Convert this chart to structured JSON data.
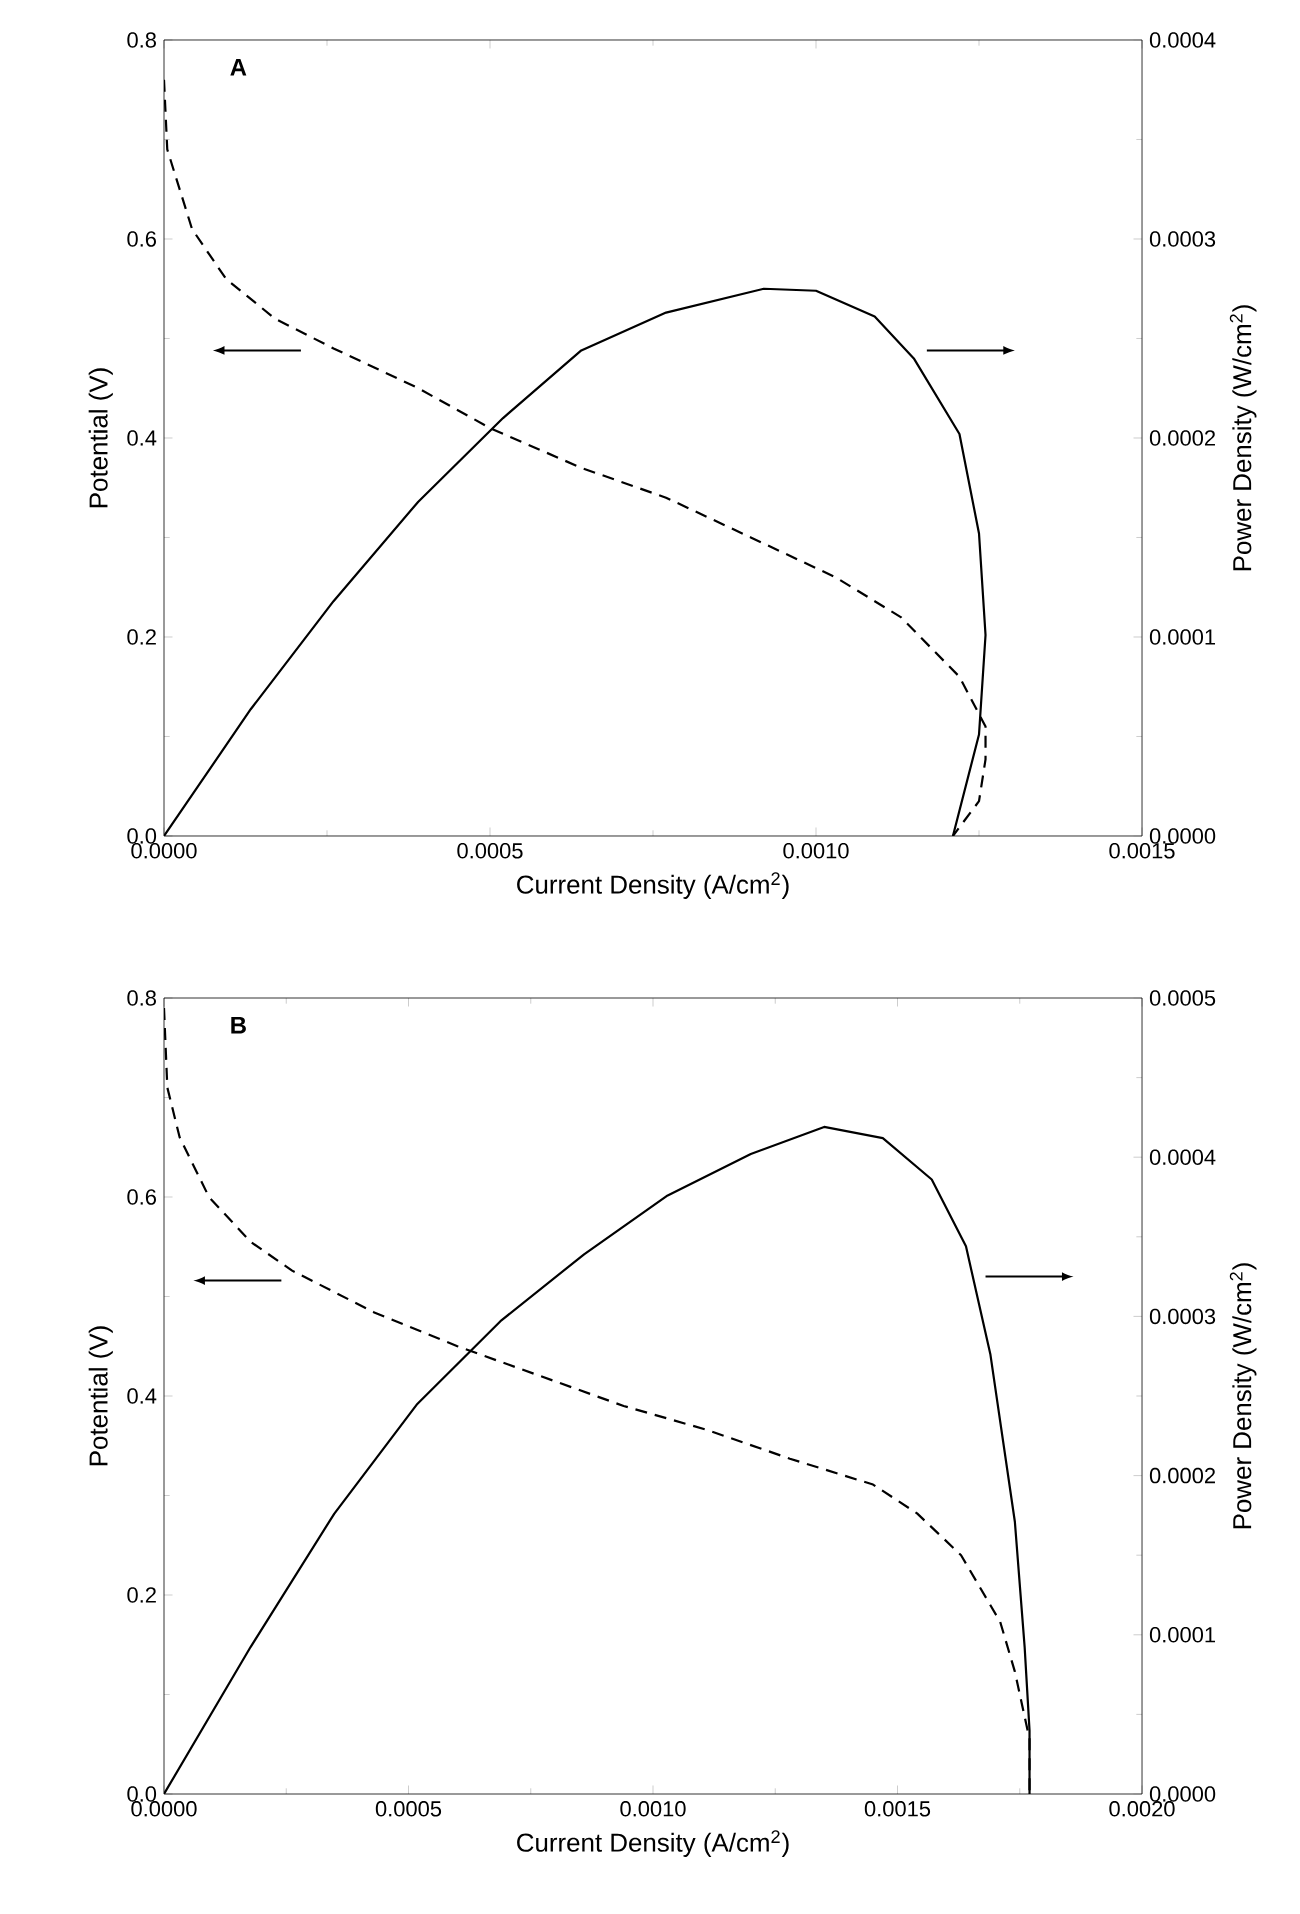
{
  "chart_data": [
    {
      "type": "line",
      "title": "A",
      "xlabel": "Current Density (A/cm$^{2}$)",
      "ylabel": "Potential (V)",
      "y2label": "Power Density (W/cm$^{2}$)",
      "xlim": [
        0,
        0.0015
      ],
      "xticks": [
        {
          "value": 0,
          "label": "0.0000"
        },
        {
          "value": 0.0005,
          "label": "0.0005"
        },
        {
          "value": 0.001,
          "label": "0.0010"
        },
        {
          "value": 0.0015,
          "label": "0.0015"
        }
      ],
      "ylim": [
        0,
        0.8
      ],
      "yticks": [
        {
          "value": 0,
          "label": "0.0"
        },
        {
          "value": 0.2,
          "label": "0.2"
        },
        {
          "value": 0.4,
          "label": "0.4"
        },
        {
          "value": 0.6,
          "label": "0.6"
        },
        {
          "value": 0.8,
          "label": "0.8"
        }
      ],
      "y2lim": [
        0,
        0.0004
      ],
      "y2ticks": [
        {
          "value": 0,
          "label": "0.0000"
        },
        {
          "value": 0.0001,
          "label": "0.0001"
        },
        {
          "value": 0.0002,
          "label": "0.0002"
        },
        {
          "value": 0.0003,
          "label": "0.0003"
        },
        {
          "value": 0.0004,
          "label": "0.0004"
        }
      ],
      "series": [
        {
          "color": "#000000",
          "line_style": "dashed",
          "x": [
            0,
            5e-06,
            4.3e-05,
            9.5e-05,
            0.00017,
            0.00026,
            0.00039,
            0.0005,
            0.00064,
            0.00077,
            0.0009,
            0.00103,
            0.00113,
            0.00122,
            0.00126,
            0.00126,
            0.00125,
            0.00121
          ],
          "values": [
            0.76,
            0.69,
            0.61,
            0.56,
            0.52,
            0.49,
            0.45,
            0.41,
            0.37,
            0.34,
            0.3,
            0.26,
            0.22,
            0.16,
            0.11,
            0.077,
            0.035,
            0
          ]
        },
        {
          "color": "#000000",
          "line_style": "solid",
          "axis": "y2",
          "x": [
            0,
            0.000133,
            0.00026,
            0.00039,
            0.00052,
            0.00064,
            0.00077,
            0.00092,
            0.001,
            0.00109,
            0.00115,
            0.00122,
            0.00125,
            0.00126,
            0.00125,
            0.00121
          ],
          "values": [
            0,
            6.37e-05,
            0.000118,
            0.000168,
            0.00021,
            0.000244,
            0.000263,
            0.000275,
            0.000274,
            0.000261,
            0.00024,
            0.000202,
            0.000152,
            0.000101,
            5.1e-05,
            0
          ]
        }
      ]
    },
    {
      "type": "line",
      "title": "B",
      "xlabel": "Current Density (A/cm$^{2}$)",
      "ylabel": "Potential (V)",
      "y2label": "Power Density (W/cm$^{2}$)",
      "xlim": [
        0,
        0.002
      ],
      "xticks": [
        {
          "value": 0,
          "label": "0.0000"
        },
        {
          "value": 0.0005,
          "label": "0.0005"
        },
        {
          "value": 0.001,
          "label": "0.0010"
        },
        {
          "value": 0.0015,
          "label": "0.0015"
        },
        {
          "value": 0.002,
          "label": "0.0020"
        }
      ],
      "ylim": [
        0,
        0.8
      ],
      "yticks": [
        {
          "value": 0,
          "label": "0.0"
        },
        {
          "value": 0.2,
          "label": "0.2"
        },
        {
          "value": 0.4,
          "label": "0.4"
        },
        {
          "value": 0.6,
          "label": "0.6"
        },
        {
          "value": 0.8,
          "label": "0.8"
        }
      ],
      "y2lim": [
        0,
        0.0005
      ],
      "y2ticks": [
        {
          "value": 0,
          "label": "0.0000"
        },
        {
          "value": 0.0001,
          "label": "0.0001"
        },
        {
          "value": 0.0002,
          "label": "0.0002"
        },
        {
          "value": 0.0003,
          "label": "0.0003"
        },
        {
          "value": 0.0004,
          "label": "0.0004"
        },
        {
          "value": 0.0005,
          "label": "0.0005"
        }
      ],
      "series": [
        {
          "color": "#000000",
          "line_style": "dashed",
          "x": [
            0,
            6.8e-06,
            3.2e-05,
            9.2e-05,
            0.000177,
            0.000262,
            0.00043,
            0.0006,
            0.00077,
            0.00094,
            0.00111,
            0.00128,
            0.00145,
            0.00154,
            0.00163,
            0.00171,
            0.00174,
            0.00177,
            0.00177
          ],
          "values": [
            0.79,
            0.71,
            0.66,
            0.6,
            0.555,
            0.526,
            0.484,
            0.45,
            0.42,
            0.39,
            0.366,
            0.337,
            0.311,
            0.282,
            0.24,
            0.173,
            0.123,
            0.055,
            0
          ]
        },
        {
          "color": "#000000",
          "line_style": "solid",
          "axis": "y2",
          "x": [
            0,
            0.000177,
            0.000348,
            0.000518,
            0.000688,
            0.000859,
            0.00103,
            0.0012,
            0.00135,
            0.00147,
            0.00157,
            0.00164,
            0.00169,
            0.00174,
            0.00176,
            0.00177,
            0.00177
          ],
          "values": [
            0,
            9.23e-05,
            0.000176,
            0.000245,
            0.000297,
            0.000339,
            0.000376,
            0.000402,
            0.000419,
            0.000412,
            0.000386,
            0.000344,
            0.000276,
            0.000171,
            9.23e-05,
            3.99e-05,
            0
          ]
        }
      ]
    }
  ]
}
